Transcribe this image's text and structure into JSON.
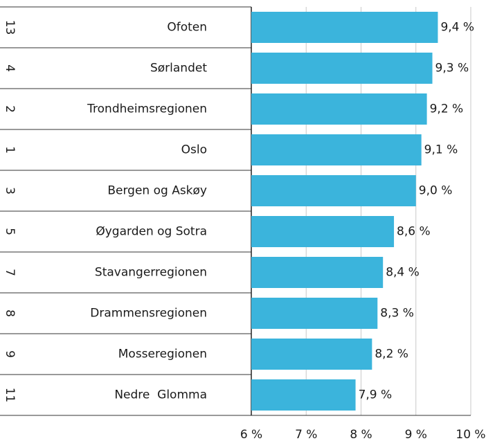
{
  "chart_data": {
    "type": "bar",
    "orientation": "horizontal",
    "ranks": [
      13,
      4,
      2,
      1,
      3,
      5,
      7,
      8,
      9,
      11
    ],
    "categories": [
      "Ofoten",
      "Sørlandet",
      "Trondheimsregionen",
      "Oslo",
      "Bergen og Askøy",
      "Øygarden og Sotra",
      "Stavangerregionen",
      "Drammensregionen",
      "Mosseregionen",
      "Nedre  Glomma"
    ],
    "values": [
      9.4,
      9.3,
      9.2,
      9.1,
      9.0,
      8.6,
      8.4,
      8.3,
      8.2,
      7.9
    ],
    "value_labels": [
      "9,4 %",
      "9,3 %",
      "9,2 %",
      "9,1 %",
      "9,0 %",
      "8,6 %",
      "8,4 %",
      "8,3 %",
      "8,2 %",
      "7,9 %"
    ],
    "color": "#3bb4dc",
    "xlim": [
      6,
      10
    ],
    "xticks": [
      {
        "value": 6,
        "label": "6 %"
      },
      {
        "value": 7,
        "label": "7 %"
      },
      {
        "value": 8,
        "label": "8 %"
      },
      {
        "value": 9,
        "label": "9 %"
      },
      {
        "value": 10,
        "label": "10 %"
      }
    ],
    "grid": true
  }
}
